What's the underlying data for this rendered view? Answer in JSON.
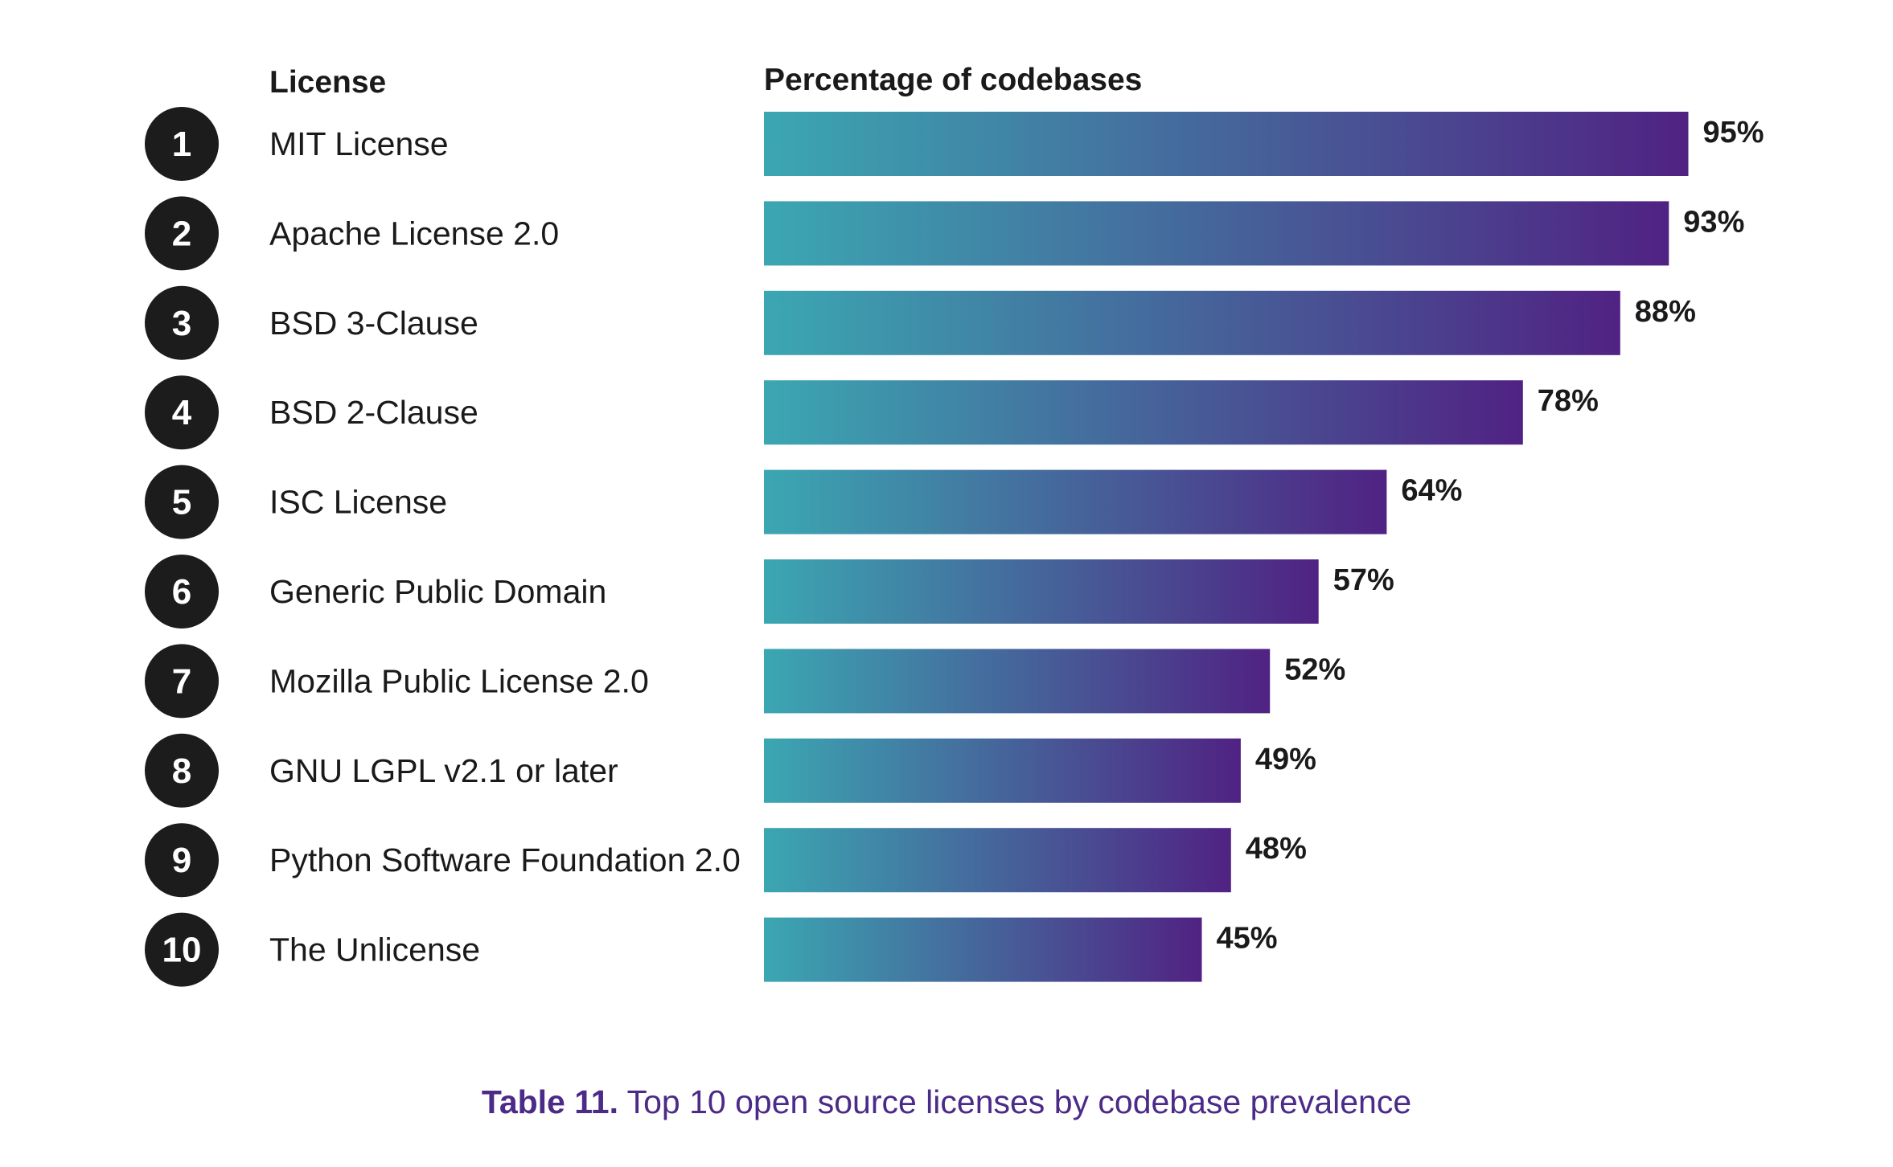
{
  "chart_data": {
    "type": "bar",
    "orientation": "horizontal",
    "columns": {
      "license": "License",
      "percentage": "Percentage of codebases"
    },
    "categories": [
      "MIT License",
      "Apache License 2.0",
      "BSD 3-Clause",
      "BSD 2-Clause",
      "ISC License",
      "Generic Public Domain",
      "Mozilla Public License 2.0",
      "GNU LGPL v2.1 or later",
      "Python Software Foundation 2.0",
      "The Unlicense"
    ],
    "ranks": [
      "1",
      "2",
      "3",
      "4",
      "5",
      "6",
      "7",
      "8",
      "9",
      "10"
    ],
    "values": [
      95,
      93,
      88,
      78,
      64,
      57,
      52,
      49,
      48,
      45
    ],
    "value_labels": [
      "95%",
      "93%",
      "88%",
      "78%",
      "64%",
      "57%",
      "52%",
      "49%",
      "48%",
      "45%"
    ],
    "xlim": [
      0,
      100
    ],
    "grid": false,
    "legend": "none",
    "colors": {
      "gradient_start": "#3ba7b2",
      "gradient_end": "#502283",
      "rank_badge": "#1c1c1c",
      "text": "#1a1a1a"
    }
  },
  "caption": {
    "bold": "Table 11.",
    "text": " Top 10 open source licenses by codebase prevalence",
    "color": "#4b2a88"
  }
}
